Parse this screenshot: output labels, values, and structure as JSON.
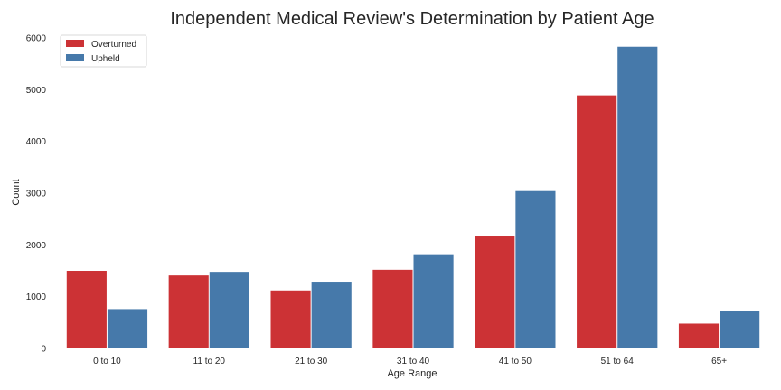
{
  "chart_data": {
    "type": "bar",
    "title": "Independent Medical Review's Determination by Patient Age",
    "xlabel": "Age Range",
    "ylabel": "Count",
    "ylim": [
      0,
      6000
    ],
    "yticks": [
      "0",
      "1000",
      "2000",
      "3000",
      "4000",
      "5000",
      "6000"
    ],
    "categories": [
      "0 to 10",
      "11 to 20",
      "21 to 30",
      "31 to 40",
      "41 to 50",
      "51 to 64",
      "65+"
    ],
    "series": [
      {
        "name": "Overturned",
        "color": "#cc3235",
        "values": [
          1500,
          1410,
          1120,
          1520,
          2180,
          4890,
          480
        ]
      },
      {
        "name": "Upheld",
        "color": "#4679aa",
        "values": [
          760,
          1480,
          1290,
          1820,
          3040,
          5830,
          720
        ]
      }
    ],
    "legend_position": "top-left",
    "grid": false
  }
}
